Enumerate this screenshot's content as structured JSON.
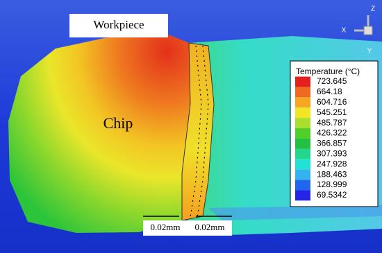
{
  "labels": {
    "workpiece": "Workpiece",
    "chip": "Chip"
  },
  "triad": {
    "x": "X",
    "y": "Y",
    "z": "Z"
  },
  "legend": {
    "title": "Temperature (°C)",
    "values": [
      723.645,
      664.18,
      604.716,
      545.251,
      485.787,
      426.322,
      366.857,
      307.393,
      247.928,
      188.463,
      128.999,
      69.5342
    ],
    "colors": [
      "#e3201b",
      "#ef6a1f",
      "#f6a623",
      "#f2e526",
      "#a9df2c",
      "#4fd02a",
      "#22c141",
      "#22d68c",
      "#22e2d6",
      "#33b3f0",
      "#2167ee",
      "#2424e6"
    ]
  },
  "dimensions": [
    "0.02mm",
    "0.02mm"
  ]
}
